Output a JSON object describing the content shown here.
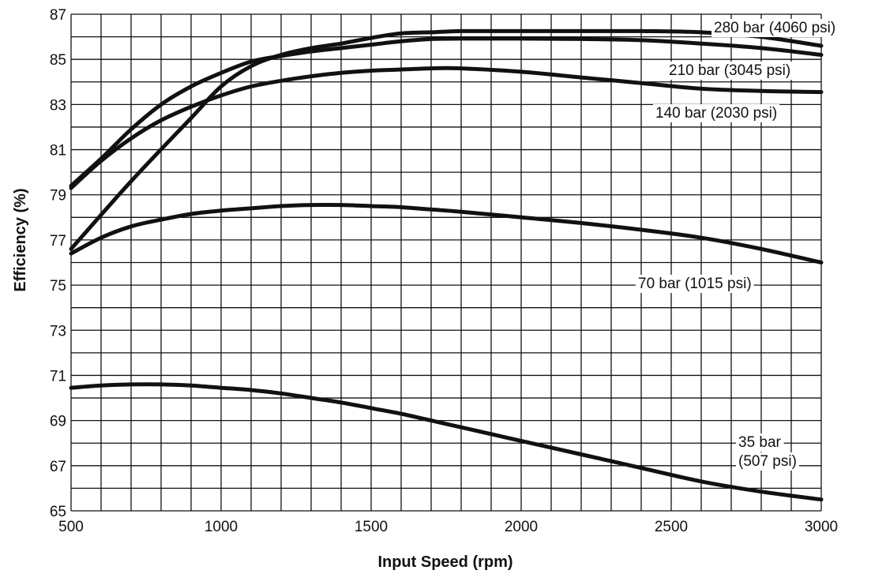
{
  "chart_data": {
    "type": "line",
    "title": "",
    "xlabel": "Input Speed (rpm)",
    "ylabel": "Efficiency (%)",
    "xlim": [
      500,
      3000
    ],
    "ylim": [
      65,
      87
    ],
    "x_ticks": [
      500,
      1000,
      1500,
      2000,
      2500,
      3000
    ],
    "y_ticks": [
      65,
      67,
      69,
      71,
      73,
      75,
      77,
      79,
      81,
      83,
      85,
      87
    ],
    "grid": true,
    "grid_x_step": 100,
    "grid_y_step": 1,
    "legend": "none",
    "line_color": "#111111",
    "series": [
      {
        "name": "280 bar (4060 psi)",
        "label_lines": [
          "280 bar (4060 psi)"
        ],
        "x": [
          500,
          700,
          900,
          1000,
          1100,
          1200,
          1300,
          1400,
          1500,
          1600,
          1700,
          1800,
          2000,
          2200,
          2400,
          2600,
          2800,
          3000
        ],
        "y": [
          76.6,
          79.6,
          82.4,
          83.8,
          84.7,
          85.2,
          85.5,
          85.7,
          85.95,
          86.15,
          86.2,
          86.25,
          86.25,
          86.25,
          86.25,
          86.2,
          86.0,
          85.6
        ]
      },
      {
        "name": "210 bar (3045 psi)",
        "label_lines": [
          "210 bar (3045 psi)"
        ],
        "x": [
          500,
          600,
          700,
          800,
          900,
          1000,
          1100,
          1200,
          1300,
          1400,
          1500,
          1600,
          1700,
          1800,
          2000,
          2200,
          2400,
          2600,
          2800,
          3000
        ],
        "y": [
          79.4,
          80.6,
          81.9,
          83.0,
          83.8,
          84.4,
          84.9,
          85.15,
          85.35,
          85.5,
          85.65,
          85.8,
          85.9,
          85.92,
          85.92,
          85.9,
          85.85,
          85.7,
          85.5,
          85.2
        ]
      },
      {
        "name": "140 bar (2030 psi)",
        "label_lines": [
          "140 bar (2030 psi)"
        ],
        "x": [
          500,
          600,
          700,
          800,
          900,
          1000,
          1100,
          1200,
          1300,
          1400,
          1500,
          1600,
          1700,
          1800,
          2000,
          2200,
          2400,
          2600,
          2800,
          3000
        ],
        "y": [
          79.3,
          80.5,
          81.5,
          82.3,
          82.9,
          83.4,
          83.8,
          84.05,
          84.25,
          84.4,
          84.5,
          84.55,
          84.6,
          84.6,
          84.45,
          84.2,
          83.95,
          83.7,
          83.6,
          83.55
        ]
      },
      {
        "name": "70 bar (1015 psi)",
        "label_lines": [
          "70 bar (1015 psi)"
        ],
        "x": [
          500,
          600,
          700,
          800,
          900,
          1000,
          1100,
          1200,
          1300,
          1400,
          1500,
          1600,
          1700,
          1800,
          2000,
          2200,
          2400,
          2600,
          2800,
          3000
        ],
        "y": [
          76.4,
          77.1,
          77.6,
          77.9,
          78.15,
          78.3,
          78.4,
          78.5,
          78.55,
          78.55,
          78.5,
          78.45,
          78.35,
          78.25,
          78.0,
          77.75,
          77.45,
          77.1,
          76.6,
          76.0
        ]
      },
      {
        "name": "35 bar (507 psi)",
        "label_lines": [
          "35 bar",
          "(507 psi)"
        ],
        "x": [
          500,
          600,
          700,
          800,
          900,
          1000,
          1100,
          1200,
          1300,
          1400,
          1500,
          1600,
          1700,
          1800,
          2000,
          2200,
          2400,
          2600,
          2800,
          3000
        ],
        "y": [
          70.45,
          70.55,
          70.6,
          70.6,
          70.55,
          70.45,
          70.35,
          70.2,
          70.0,
          69.8,
          69.55,
          69.3,
          69.0,
          68.7,
          68.1,
          67.5,
          66.9,
          66.3,
          65.85,
          65.5
        ]
      }
    ]
  }
}
